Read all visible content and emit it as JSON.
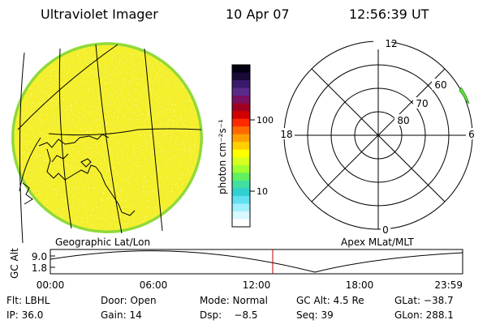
{
  "header": {
    "title": "Ultraviolet Imager",
    "date": "10 Apr 07",
    "time": "12:56:39 UT"
  },
  "colorbar": {
    "unit_label": "photon cm⁻²s⁻¹",
    "ticks": [
      "100",
      "10"
    ],
    "colors": [
      "#000010",
      "#1a0a3a",
      "#3a1a6a",
      "#5a2a8a",
      "#7a1060",
      "#a00020",
      "#d00000",
      "#ff2a00",
      "#ff6a00",
      "#ffa000",
      "#ffd000",
      "#ffff00",
      "#d8ff20",
      "#a0ff30",
      "#60f060",
      "#40e0a0",
      "#30d0d0",
      "#60e0f0",
      "#a0f0ff",
      "#d8f8ff",
      "#ffffff"
    ]
  },
  "left_panel": {
    "label": "Geographic Lat/Lon"
  },
  "polar_plot": {
    "label": "Apex MLat/MLT",
    "mlt_labels": {
      "top": "12",
      "left": "18",
      "right": "6",
      "bottom": "0"
    },
    "ring_labels": [
      "60",
      "70",
      "80"
    ]
  },
  "altitude_plot": {
    "ylabel": "GC Alt",
    "yticks": [
      "9.0",
      "1.8"
    ],
    "xticks": [
      "00:00",
      "06:00",
      "12:00",
      "18:00",
      "23:59"
    ],
    "current_time_fraction": 0.5394,
    "marker_color": "#c00000"
  },
  "info": {
    "filter": "Flt: LBHL",
    "door": "Door: Open",
    "mode": "Mode: Normal",
    "gc_alt": "GC Alt: 4.5 Re",
    "glat": "GLat: −38.7",
    "ip": "IP: 36.0",
    "gain": "Gain: 14",
    "dsp": "Dsp:    −8.5",
    "seq": "Seq: 39",
    "glon": "GLon: 288.1"
  }
}
